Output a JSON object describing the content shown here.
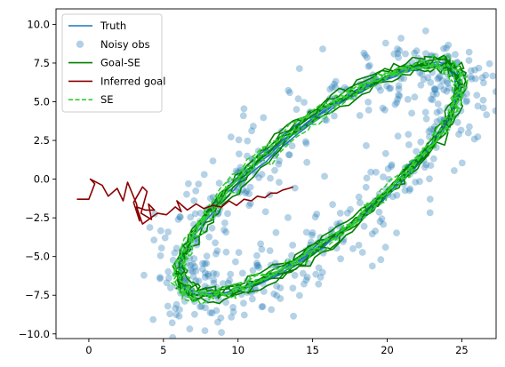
{
  "chart_data": {
    "type": "line",
    "title": "",
    "xlabel": "",
    "ylabel": "",
    "xlim": [
      -2.2,
      27.3
    ],
    "ylim": [
      -10.3,
      11.0
    ],
    "xticks": [
      0,
      5,
      10,
      15,
      20,
      25
    ],
    "yticks": [
      -10.0,
      -7.5,
      -5.0,
      -2.5,
      0.0,
      2.5,
      5.0,
      7.5,
      10.0
    ],
    "xtick_labels": [
      "0",
      "5",
      "10",
      "15",
      "20",
      "25"
    ],
    "ytick_labels": [
      "−10.0",
      "−7.5",
      "−5.0",
      "−2.5",
      "0.0",
      "2.5",
      "5.0",
      "7.5",
      "10.0"
    ],
    "grid": false,
    "legend_position": "top-left",
    "ellipse": {
      "center": [
        15.5,
        0.0
      ],
      "major_dir": [
        0.8,
        0.6
      ],
      "semi_major": 11.5,
      "semi_minor": 3.6
    },
    "series": [
      {
        "name": "Truth",
        "kind": "line",
        "color": "#1f77b4",
        "dash": "solid"
      },
      {
        "name": "Noisy obs",
        "kind": "scatter",
        "color": "#1f77b4",
        "opacity": 0.35
      },
      {
        "name": "Goal-SE",
        "kind": "line",
        "color": "#008000",
        "dash": "solid"
      },
      {
        "name": "Inferred goal",
        "kind": "line",
        "color": "#8b0000",
        "dash": "solid"
      },
      {
        "name": "SE",
        "kind": "line",
        "color": "#32cd32",
        "dash": "dashed"
      }
    ],
    "inferred_goal": {
      "x": [
        -0.8,
        0.0,
        0.4,
        0.1,
        0.9,
        1.3,
        1.9,
        2.3,
        2.6,
        3.2,
        3.4,
        3.0,
        3.6,
        3.9,
        3.5,
        4.2,
        4.0,
        4.4,
        3.8,
        3.2,
        3.6,
        4.3,
        4.6,
        5.2,
        5.8,
        6.2,
        5.9,
        6.6,
        7.2,
        7.7,
        8.3,
        8.9,
        9.4,
        9.9,
        10.4,
        10.9,
        11.3,
        11.8,
        12.2,
        12.6,
        13.0,
        13.4,
        13.7
      ],
      "y": [
        -1.3,
        -1.3,
        -0.3,
        0.0,
        -0.4,
        -1.1,
        -0.6,
        -1.4,
        -0.2,
        -1.6,
        -2.7,
        -1.5,
        -0.5,
        -0.8,
        -2.2,
        -2.6,
        -1.6,
        -2.0,
        -2.0,
        -1.8,
        -2.9,
        -2.4,
        -2.2,
        -2.3,
        -1.8,
        -2.1,
        -1.4,
        -2.0,
        -1.6,
        -1.9,
        -1.7,
        -1.8,
        -1.4,
        -1.7,
        -1.3,
        -1.4,
        -1.1,
        -1.2,
        -0.9,
        -0.9,
        -0.7,
        -0.6,
        -0.5
      ]
    }
  },
  "legend": {
    "items": [
      {
        "label": "Truth",
        "symbol": "line",
        "color": "#1f77b4",
        "dash": "solid"
      },
      {
        "label": "Noisy obs",
        "symbol": "marker",
        "color": "#1f77b4"
      },
      {
        "label": "Goal-SE",
        "symbol": "line",
        "color": "#008000",
        "dash": "solid"
      },
      {
        "label": "Inferred goal",
        "symbol": "line",
        "color": "#8b0000",
        "dash": "solid"
      },
      {
        "label": "SE",
        "symbol": "line",
        "color": "#32cd32",
        "dash": "dashed"
      }
    ]
  }
}
